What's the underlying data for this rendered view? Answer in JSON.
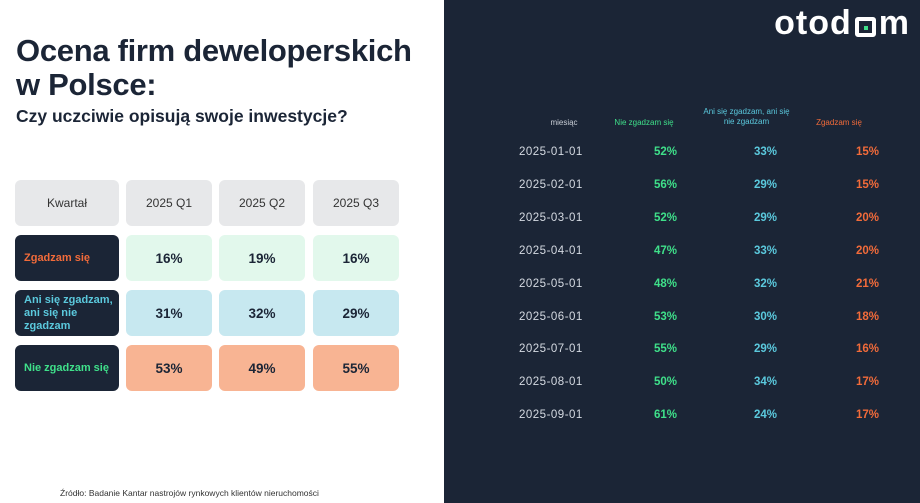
{
  "left": {
    "title": "Ocena firm deweloperskich w Polsce:",
    "subtitle": "Czy uczciwie opisują swoje inwestycje?",
    "table": {
      "header": [
        "Kwartał",
        "2025 Q1",
        "2025 Q2",
        "2025 Q3"
      ],
      "rows": [
        {
          "label": "Zgadzam się",
          "values": [
            "16%",
            "19%",
            "16%"
          ]
        },
        {
          "label": "Ani się zgadzam, ani się nie zgadzam",
          "values": [
            "31%",
            "32%",
            "29%"
          ]
        },
        {
          "label": "Nie zgadzam się",
          "values": [
            "53%",
            "49%",
            "55%"
          ]
        }
      ]
    },
    "source": "Źródło: Badanie Kantar nastrojów rynkowych klientów nieruchomości"
  },
  "right": {
    "logo": {
      "prefix": "otod",
      "suffix": "m"
    },
    "headers": {
      "month": "miesiąc",
      "disagree": "Nie zgadzam się",
      "neutral": "Ani się zgadzam, ani się nie zgadzam",
      "agree": "Zgadzam się"
    },
    "rows": [
      {
        "date": "2025-01-01",
        "disagree": "52%",
        "neutral": "33%",
        "agree": "15%"
      },
      {
        "date": "2025-02-01",
        "disagree": "56%",
        "neutral": "29%",
        "agree": "15%"
      },
      {
        "date": "2025-03-01",
        "disagree": "52%",
        "neutral": "29%",
        "agree": "20%"
      },
      {
        "date": "2025-04-01",
        "disagree": "47%",
        "neutral": "33%",
        "agree": "20%"
      },
      {
        "date": "2025-05-01",
        "disagree": "48%",
        "neutral": "32%",
        "agree": "21%"
      },
      {
        "date": "2025-06-01",
        "disagree": "53%",
        "neutral": "30%",
        "agree": "18%"
      },
      {
        "date": "2025-07-01",
        "disagree": "55%",
        "neutral": "29%",
        "agree": "16%"
      },
      {
        "date": "2025-08-01",
        "disagree": "50%",
        "neutral": "34%",
        "agree": "17%"
      },
      {
        "date": "2025-09-01",
        "disagree": "61%",
        "neutral": "24%",
        "agree": "17%"
      }
    ]
  },
  "colors": {
    "navy": "#1b2536",
    "agree": "#f26b3a",
    "neutral": "#5bc9dd",
    "disagree": "#3fe08a"
  }
}
